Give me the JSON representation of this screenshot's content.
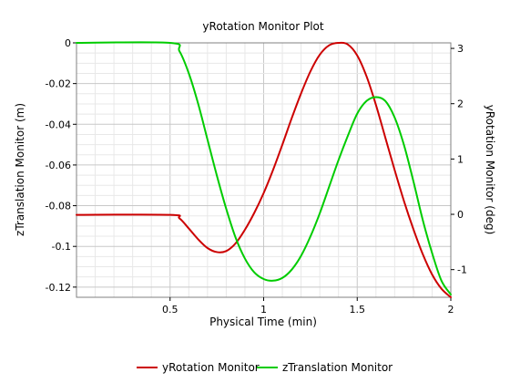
{
  "chart_data": {
    "type": "line",
    "title": "yRotation Monitor Plot",
    "xlabel": "Physical Time (min)",
    "ylabel_left": "zTranslation Monitor (m)",
    "ylabel_right": "yRotation Monitor (deg)",
    "xlim": [
      0,
      2
    ],
    "ylim_left": [
      -0.125,
      0.0
    ],
    "ylim_right": [
      -1.5,
      3.1
    ],
    "x_ticks": [
      0.5,
      1,
      1.5,
      2
    ],
    "x_tick_labels": [
      "0.5",
      "1",
      "1.5",
      "2"
    ],
    "y_left_ticks": [
      0,
      -0.02,
      -0.04,
      -0.06,
      -0.08,
      -0.1,
      -0.12
    ],
    "y_left_tick_labels": [
      "0",
      "-0.02",
      "-0.04",
      "-0.06",
      "-0.08",
      "-0.1",
      "-0.12"
    ],
    "y_right_ticks": [
      3,
      2,
      1,
      0,
      -1
    ],
    "y_right_tick_labels": [
      "3",
      "2",
      "1",
      "0",
      "-1"
    ],
    "grid": true,
    "legend_position": "bottom",
    "series": [
      {
        "name": "yRotation Monitor",
        "color": "#cc0000",
        "axis": "left",
        "x": [
          0,
          0.5,
          0.55,
          0.6,
          0.65,
          0.7,
          0.75,
          0.8,
          0.85,
          0.9,
          0.95,
          1.0,
          1.05,
          1.1,
          1.15,
          1.2,
          1.25,
          1.3,
          1.35,
          1.4,
          1.45,
          1.5,
          1.55,
          1.6,
          1.65,
          1.7,
          1.75,
          1.8,
          1.85,
          1.9,
          1.95,
          2.0
        ],
        "y": [
          -0.0845,
          -0.0845,
          -0.0862,
          -0.0912,
          -0.0965,
          -0.1008,
          -0.1028,
          -0.1023,
          -0.0985,
          -0.0918,
          -0.0835,
          -0.0738,
          -0.0625,
          -0.05,
          -0.037,
          -0.0248,
          -0.014,
          -0.0058,
          -0.0012,
          0.0,
          -0.0008,
          -0.0062,
          -0.0165,
          -0.0305,
          -0.0465,
          -0.0625,
          -0.0778,
          -0.0915,
          -0.1038,
          -0.1138,
          -0.1208,
          -0.125
        ]
      },
      {
        "name": "zTranslation Monitor",
        "color": "#00cc00",
        "axis": "right",
        "x": [
          0,
          0.5,
          0.55,
          0.6,
          0.65,
          0.7,
          0.75,
          0.8,
          0.85,
          0.9,
          0.95,
          1.0,
          1.05,
          1.1,
          1.15,
          1.2,
          1.25,
          1.3,
          1.35,
          1.4,
          1.45,
          1.5,
          1.55,
          1.6,
          1.65,
          1.7,
          1.75,
          1.8,
          1.85,
          1.9,
          1.95,
          2.0
        ],
        "y": [
          3.1,
          3.1,
          2.95,
          2.55,
          2.0,
          1.35,
          0.7,
          0.1,
          -0.42,
          -0.8,
          -1.05,
          -1.17,
          -1.2,
          -1.15,
          -1.0,
          -0.75,
          -0.4,
          0.02,
          0.5,
          0.98,
          1.42,
          1.82,
          2.05,
          2.12,
          2.05,
          1.75,
          1.25,
          0.6,
          -0.1,
          -0.7,
          -1.2,
          -1.45
        ]
      }
    ]
  }
}
